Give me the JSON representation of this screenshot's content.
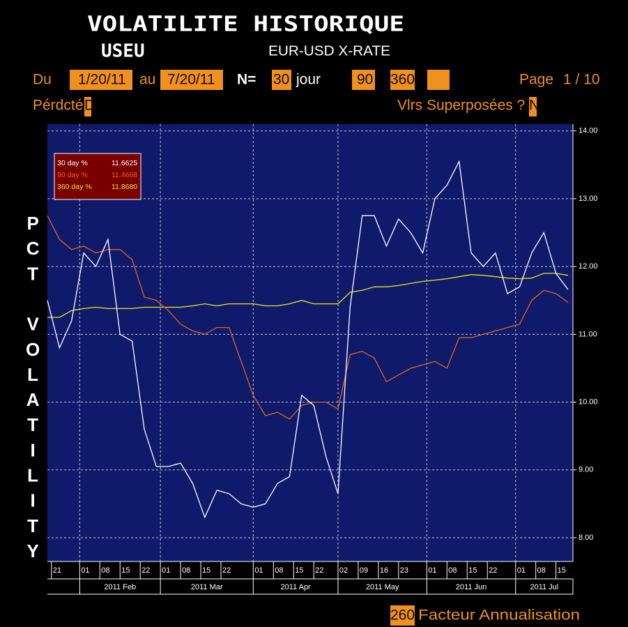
{
  "header": {
    "title": "VOLATILITE HISTORIQUE",
    "ticker": "USEU",
    "description": "EUR-USD X-RATE",
    "from_label": "Du",
    "from": "1/20/11",
    "to_label": "au",
    "to": "7/20/11",
    "n_label": "N=",
    "n": 30,
    "unit": "jour",
    "n2": 90,
    "n3": 360,
    "page_label": "Page",
    "page": "1 / 10",
    "period_label": "Pérdcté",
    "period": "D",
    "overlay_label": "Vlrs Superposées ?",
    "overlay": "N"
  },
  "chart_data": {
    "type": "line",
    "ylabel": "PCT VOLATILITY",
    "x": [
      "2011-01-20",
      "2011-01-25",
      "2011-01-28",
      "2011-02-02",
      "2011-02-07",
      "2011-02-10",
      "2011-02-15",
      "2011-02-18",
      "2011-02-23",
      "2011-02-28",
      "2011-03-03",
      "2011-03-08",
      "2011-03-11",
      "2011-03-16",
      "2011-03-21",
      "2011-03-24",
      "2011-03-29",
      "2011-04-01",
      "2011-04-06",
      "2011-04-11",
      "2011-04-14",
      "2011-04-19",
      "2011-04-22",
      "2011-04-27",
      "2011-05-02",
      "2011-05-05",
      "2011-05-10",
      "2011-05-13",
      "2011-05-18",
      "2011-05-23",
      "2011-05-26",
      "2011-05-31",
      "2011-06-03",
      "2011-06-08",
      "2011-06-13",
      "2011-06-16",
      "2011-06-21",
      "2011-06-24",
      "2011-06-29",
      "2011-07-04",
      "2011-07-07",
      "2011-07-12",
      "2011-07-15",
      "2011-07-20"
    ],
    "series": [
      {
        "name": "30 day %",
        "legend_value": 11.6625,
        "color": "#ffffff",
        "values": [
          11.5,
          10.8,
          11.2,
          12.2,
          12.0,
          12.4,
          11.0,
          10.9,
          9.6,
          9.05,
          9.05,
          9.1,
          8.8,
          8.3,
          8.7,
          8.65,
          8.5,
          8.45,
          8.5,
          8.8,
          8.9,
          10.1,
          9.95,
          9.2,
          8.65,
          11.4,
          12.75,
          12.75,
          12.3,
          12.7,
          12.5,
          12.2,
          13.0,
          13.2,
          13.55,
          12.2,
          12.0,
          12.2,
          11.6,
          11.7,
          12.2,
          12.5,
          11.9,
          11.66
        ]
      },
      {
        "name": "90 day %",
        "legend_value": 11.4668,
        "color": "#e0661a",
        "values": [
          12.75,
          12.4,
          12.25,
          12.3,
          12.2,
          12.25,
          12.25,
          12.1,
          11.55,
          11.5,
          11.35,
          11.15,
          11.05,
          11.0,
          11.1,
          11.1,
          10.6,
          10.1,
          9.8,
          9.85,
          9.75,
          9.95,
          10.0,
          10.0,
          9.9,
          10.7,
          10.75,
          10.65,
          10.3,
          10.4,
          10.5,
          10.55,
          10.6,
          10.5,
          10.95,
          10.95,
          11.0,
          11.05,
          11.1,
          11.15,
          11.5,
          11.65,
          11.6,
          11.47
        ]
      },
      {
        "name": "360 day %",
        "legend_value": 11.868,
        "legend_label": "11.8680",
        "color": "#e8e81a",
        "values": [
          11.25,
          11.25,
          11.35,
          11.38,
          11.4,
          11.38,
          11.38,
          11.38,
          11.4,
          11.4,
          11.4,
          11.4,
          11.42,
          11.45,
          11.42,
          11.45,
          11.45,
          11.45,
          11.42,
          11.42,
          11.45,
          11.5,
          11.45,
          11.45,
          11.45,
          11.62,
          11.65,
          11.7,
          11.7,
          11.72,
          11.75,
          11.78,
          11.8,
          11.82,
          11.85,
          11.88,
          11.87,
          11.85,
          11.83,
          11.82,
          11.83,
          11.9,
          11.9,
          11.87
        ]
      }
    ],
    "xlim": [
      "2011-01-20",
      "2011-07-20"
    ],
    "xticks": [
      {
        "value": "2011-01-21",
        "label": "21"
      },
      {
        "value": "2011-02-01",
        "label": "01"
      },
      {
        "value": "2011-02-08",
        "label": "08"
      },
      {
        "value": "2011-02-15",
        "label": "15"
      },
      {
        "value": "2011-02-22",
        "label": "22"
      },
      {
        "value": "2011-03-01",
        "label": "01"
      },
      {
        "value": "2011-03-08",
        "label": "08"
      },
      {
        "value": "2011-03-15",
        "label": "15"
      },
      {
        "value": "2011-03-22",
        "label": "22"
      },
      {
        "value": "2011-04-01",
        "label": "01"
      },
      {
        "value": "2011-04-08",
        "label": "08"
      },
      {
        "value": "2011-04-15",
        "label": "15"
      },
      {
        "value": "2011-04-22",
        "label": "22"
      },
      {
        "value": "2011-05-02",
        "label": "02"
      },
      {
        "value": "2011-05-09",
        "label": "09"
      },
      {
        "value": "2011-05-16",
        "label": "16"
      },
      {
        "value": "2011-05-23",
        "label": "23"
      },
      {
        "value": "2011-06-01",
        "label": "01"
      },
      {
        "value": "2011-06-08",
        "label": "08"
      },
      {
        "value": "2011-06-15",
        "label": "15"
      },
      {
        "value": "2011-06-22",
        "label": "22"
      },
      {
        "value": "2011-07-01",
        "label": "01"
      },
      {
        "value": "2011-07-08",
        "label": "08"
      },
      {
        "value": "2011-07-15",
        "label": "15"
      }
    ],
    "month_labels": [
      {
        "value": "2011-02-01",
        "label": "2011 Feb"
      },
      {
        "value": "2011-03-01",
        "label": "2011 Mar"
      },
      {
        "value": "2011-04-01",
        "label": "2011 Apr"
      },
      {
        "value": "2011-05-02",
        "label": "2011 May"
      },
      {
        "value": "2011-06-01",
        "label": "2011 Jun"
      },
      {
        "value": "2011-07-01",
        "label": "2011 Jul"
      }
    ],
    "ylim": [
      7.65,
      14.1
    ],
    "yticks": [
      {
        "value": 8,
        "label": "8.00"
      },
      {
        "value": 9,
        "label": "9.00"
      },
      {
        "value": 10,
        "label": "10.00"
      },
      {
        "value": 11,
        "label": "11.00"
      },
      {
        "value": 12,
        "label": "12.00"
      },
      {
        "value": 13,
        "label": "13.00"
      },
      {
        "value": 14,
        "label": "14.00"
      }
    ],
    "grid": true,
    "y_axis_side": "right",
    "legend_position": "upper left"
  },
  "footer": {
    "factor": 260,
    "factor_label": "Facteur Annualisation"
  }
}
